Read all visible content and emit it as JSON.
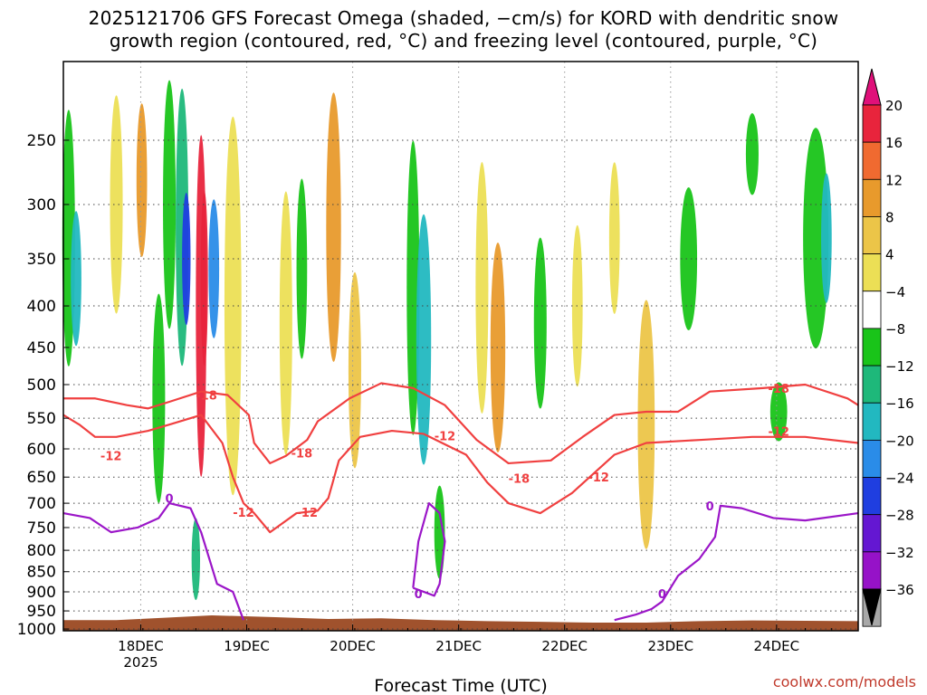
{
  "header": {
    "title_line1": "2025121706 GFS Forecast Omega (shaded, −cm/s) for KORD with dendritic snow",
    "title_line2": "growth region (contoured, red, °C) and freezing level (contoured, purple, °C)"
  },
  "footer": {
    "credit": "coolwx.com/models"
  },
  "chart_data": {
    "type": "heatmap",
    "xlabel": "Forecast Time (UTC)",
    "ylabel": "",
    "x_range": [
      0,
      7.5
    ],
    "x_ticks": [
      {
        "pos": 0.73,
        "label": "18DEC",
        "label2": "2025"
      },
      {
        "pos": 1.73,
        "label": "19DEC",
        "label2": ""
      },
      {
        "pos": 2.73,
        "label": "20DEC",
        "label2": ""
      },
      {
        "pos": 3.73,
        "label": "21DEC",
        "label2": ""
      },
      {
        "pos": 4.73,
        "label": "22DEC",
        "label2": ""
      },
      {
        "pos": 5.73,
        "label": "23DEC",
        "label2": ""
      },
      {
        "pos": 6.73,
        "label": "24DEC",
        "label2": ""
      }
    ],
    "y_ticks": [
      250,
      300,
      350,
      400,
      450,
      500,
      550,
      600,
      650,
      700,
      750,
      800,
      850,
      900,
      950,
      1000
    ],
    "y_range": [
      200,
      1005
    ],
    "y_scale": "log",
    "grid": true,
    "colorbar": {
      "labels": [
        "20",
        "16",
        "12",
        "8",
        "4",
        "−4",
        "−8",
        "−12",
        "−16",
        "−20",
        "−24",
        "−28",
        "−32",
        "−36"
      ],
      "colors": [
        "#e8243c",
        "#f06a30",
        "#e89a2c",
        "#ecc548",
        "#ecdf55",
        "#ffffff",
        "#19c419",
        "#1eb87a",
        "#22b8c0",
        "#2a8ce8",
        "#1f3ee0",
        "#6417d2",
        "#9612c8",
        "#a8a8a8"
      ],
      "top_color": "#e0107a",
      "bottom_color": "#000000"
    },
    "omega_blobs": [
      {
        "x": 0.05,
        "p": 330,
        "w": 0.06,
        "h": 230,
        "c": "#19c419"
      },
      {
        "x": 0.12,
        "p": 370,
        "w": 0.05,
        "h": 140,
        "c": "#22b8c0"
      },
      {
        "x": 0.5,
        "p": 300,
        "w": 0.06,
        "h": 180,
        "c": "#ecdf55"
      },
      {
        "x": 0.74,
        "p": 280,
        "w": 0.05,
        "h": 120,
        "c": "#e89a2c"
      },
      {
        "x": 0.9,
        "p": 520,
        "w": 0.06,
        "h": 300,
        "c": "#19c419"
      },
      {
        "x": 1.0,
        "p": 300,
        "w": 0.06,
        "h": 230,
        "c": "#19c419"
      },
      {
        "x": 1.12,
        "p": 320,
        "w": 0.06,
        "h": 260,
        "c": "#1eb87a"
      },
      {
        "x": 1.16,
        "p": 350,
        "w": 0.04,
        "h": 130,
        "c": "#1f3ee0"
      },
      {
        "x": 1.3,
        "p": 400,
        "w": 0.05,
        "h": 360,
        "c": "#e8243c"
      },
      {
        "x": 1.33,
        "p": 370,
        "w": 0.03,
        "h": 180,
        "c": "#e8243c"
      },
      {
        "x": 1.42,
        "p": 360,
        "w": 0.05,
        "h": 140,
        "c": "#2a8ce8"
      },
      {
        "x": 1.25,
        "p": 820,
        "w": 0.04,
        "h": 190,
        "c": "#1eb87a"
      },
      {
        "x": 1.6,
        "p": 400,
        "w": 0.08,
        "h": 400,
        "c": "#ecdf55"
      },
      {
        "x": 2.1,
        "p": 420,
        "w": 0.06,
        "h": 300,
        "c": "#ecdf55"
      },
      {
        "x": 2.25,
        "p": 360,
        "w": 0.05,
        "h": 180,
        "c": "#19c419"
      },
      {
        "x": 2.55,
        "p": 320,
        "w": 0.07,
        "h": 240,
        "c": "#e89a2c"
      },
      {
        "x": 2.75,
        "p": 480,
        "w": 0.06,
        "h": 260,
        "c": "#ecc548"
      },
      {
        "x": 3.3,
        "p": 380,
        "w": 0.06,
        "h": 300,
        "c": "#19c419"
      },
      {
        "x": 3.4,
        "p": 440,
        "w": 0.07,
        "h": 300,
        "c": "#22b8c0"
      },
      {
        "x": 3.55,
        "p": 760,
        "w": 0.05,
        "h": 200,
        "c": "#19c419"
      },
      {
        "x": 3.95,
        "p": 380,
        "w": 0.06,
        "h": 260,
        "c": "#ecdf55"
      },
      {
        "x": 4.1,
        "p": 450,
        "w": 0.07,
        "h": 260,
        "c": "#e89a2c"
      },
      {
        "x": 4.5,
        "p": 420,
        "w": 0.06,
        "h": 200,
        "c": "#19c419"
      },
      {
        "x": 4.85,
        "p": 400,
        "w": 0.05,
        "h": 180,
        "c": "#ecdf55"
      },
      {
        "x": 5.5,
        "p": 560,
        "w": 0.08,
        "h": 380,
        "c": "#ecc548"
      },
      {
        "x": 5.2,
        "p": 330,
        "w": 0.05,
        "h": 140,
        "c": "#ecdf55"
      },
      {
        "x": 5.9,
        "p": 350,
        "w": 0.08,
        "h": 140,
        "c": "#19c419"
      },
      {
        "x": 6.5,
        "p": 260,
        "w": 0.06,
        "h": 60,
        "c": "#19c419"
      },
      {
        "x": 6.75,
        "p": 540,
        "w": 0.08,
        "h": 90,
        "c": "#19c419"
      },
      {
        "x": 7.1,
        "p": 330,
        "w": 0.12,
        "h": 200,
        "c": "#19c419"
      },
      {
        "x": 7.2,
        "p": 330,
        "w": 0.05,
        "h": 120,
        "c": "#22b8c0"
      }
    ],
    "contours": [
      {
        "color": "#f04040",
        "label": "-18",
        "label_at": [
          1.35,
          515
        ],
        "points": [
          [
            0,
            520
          ],
          [
            0.3,
            520
          ],
          [
            0.6,
            530
          ],
          [
            0.8,
            535
          ],
          [
            1.0,
            525
          ],
          [
            1.3,
            510
          ],
          [
            1.55,
            515
          ],
          [
            1.75,
            545
          ],
          [
            1.8,
            590
          ],
          [
            1.95,
            625
          ],
          [
            2.1,
            612
          ],
          [
            2.3,
            585
          ],
          [
            2.4,
            555
          ],
          [
            2.7,
            520
          ],
          [
            3.0,
            498
          ],
          [
            3.3,
            505
          ],
          [
            3.6,
            530
          ],
          [
            3.9,
            585
          ],
          [
            4.2,
            625
          ],
          [
            4.6,
            620
          ],
          [
            4.9,
            580
          ],
          [
            5.2,
            545
          ],
          [
            5.5,
            540
          ],
          [
            5.8,
            540
          ],
          [
            6.1,
            510
          ],
          [
            6.6,
            505
          ],
          [
            7.0,
            500
          ],
          [
            7.4,
            520
          ],
          [
            7.5,
            530
          ]
        ]
      },
      {
        "color": "#f04040",
        "label": "-12",
        "label_at": [
          3.6,
          578
        ],
        "points": [
          [
            0,
            545
          ],
          [
            0.15,
            560
          ],
          [
            0.3,
            580
          ],
          [
            0.5,
            580
          ],
          [
            0.8,
            570
          ],
          [
            1.0,
            560
          ],
          [
            1.3,
            545
          ],
          [
            1.5,
            590
          ],
          [
            1.6,
            650
          ],
          [
            1.7,
            700
          ],
          [
            1.8,
            720
          ],
          [
            1.95,
            760
          ],
          [
            2.2,
            720
          ],
          [
            2.4,
            715
          ],
          [
            2.5,
            690
          ],
          [
            2.6,
            620
          ],
          [
            2.8,
            580
          ],
          [
            3.1,
            570
          ],
          [
            3.4,
            575
          ],
          [
            3.8,
            610
          ],
          [
            4.0,
            660
          ],
          [
            4.2,
            700
          ],
          [
            4.5,
            720
          ],
          [
            4.8,
            680
          ],
          [
            5.2,
            610
          ],
          [
            5.5,
            590
          ],
          [
            6.0,
            585
          ],
          [
            6.5,
            580
          ],
          [
            7.0,
            580
          ],
          [
            7.5,
            590
          ]
        ]
      },
      {
        "color": "#9b16c8",
        "label": "0",
        "label_at": [
          1.0,
          690
        ],
        "points": [
          [
            0,
            720
          ],
          [
            0.25,
            730
          ],
          [
            0.45,
            760
          ],
          [
            0.7,
            750
          ],
          [
            0.9,
            730
          ],
          [
            1.0,
            700
          ],
          [
            1.2,
            710
          ],
          [
            1.3,
            760
          ],
          [
            1.45,
            880
          ],
          [
            1.6,
            900
          ],
          [
            1.7,
            975
          ]
        ]
      },
      {
        "color": "#9b16c8",
        "label": "0",
        "label_at": [
          3.35,
          905
        ],
        "points": [
          [
            3.3,
            890
          ],
          [
            3.35,
            780
          ],
          [
            3.45,
            700
          ],
          [
            3.55,
            720
          ],
          [
            3.6,
            780
          ],
          [
            3.55,
            880
          ],
          [
            3.5,
            910
          ],
          [
            3.3,
            890
          ]
        ]
      },
      {
        "color": "#9b16c8",
        "label": "0",
        "label_at": [
          6.1,
          705
        ],
        "points": [
          [
            5.2,
            975
          ],
          [
            5.4,
            960
          ],
          [
            5.55,
            945
          ],
          [
            5.65,
            925
          ],
          [
            5.8,
            860
          ],
          [
            6.0,
            820
          ],
          [
            6.15,
            770
          ],
          [
            6.2,
            705
          ],
          [
            6.4,
            710
          ],
          [
            6.7,
            730
          ],
          [
            7.0,
            735
          ],
          [
            7.5,
            720
          ]
        ]
      }
    ],
    "contour_labels": [
      {
        "text": "-12",
        "x": 0.45,
        "p": 612,
        "color": "#f04040"
      },
      {
        "text": "-18",
        "x": 2.25,
        "p": 607,
        "color": "#f04040"
      },
      {
        "text": "-12",
        "x": 1.7,
        "p": 718,
        "color": "#f04040"
      },
      {
        "text": "-12",
        "x": 2.3,
        "p": 718,
        "color": "#f04040"
      },
      {
        "text": "-18",
        "x": 4.3,
        "p": 652,
        "color": "#f04040"
      },
      {
        "text": "-12",
        "x": 5.05,
        "p": 650,
        "color": "#f04040"
      },
      {
        "text": "-18",
        "x": 6.75,
        "p": 505,
        "color": "#f04040"
      },
      {
        "text": "-12",
        "x": 6.75,
        "p": 571,
        "color": "#f04040"
      },
      {
        "text": "0",
        "x": 5.65,
        "p": 905,
        "color": "#9b16c8"
      }
    ],
    "terrain": {
      "color": "#a0522d",
      "top": [
        [
          0,
          975
        ],
        [
          0.5,
          975
        ],
        [
          1.0,
          968
        ],
        [
          1.4,
          962
        ],
        [
          2.0,
          967
        ],
        [
          2.5,
          972
        ],
        [
          3.0,
          970
        ],
        [
          3.5,
          975
        ],
        [
          4.0,
          978
        ],
        [
          4.5,
          980
        ],
        [
          5.0,
          982
        ],
        [
          5.5,
          982
        ],
        [
          6.0,
          978
        ],
        [
          6.5,
          976
        ],
        [
          7.0,
          977
        ],
        [
          7.5,
          978
        ]
      ]
    }
  }
}
